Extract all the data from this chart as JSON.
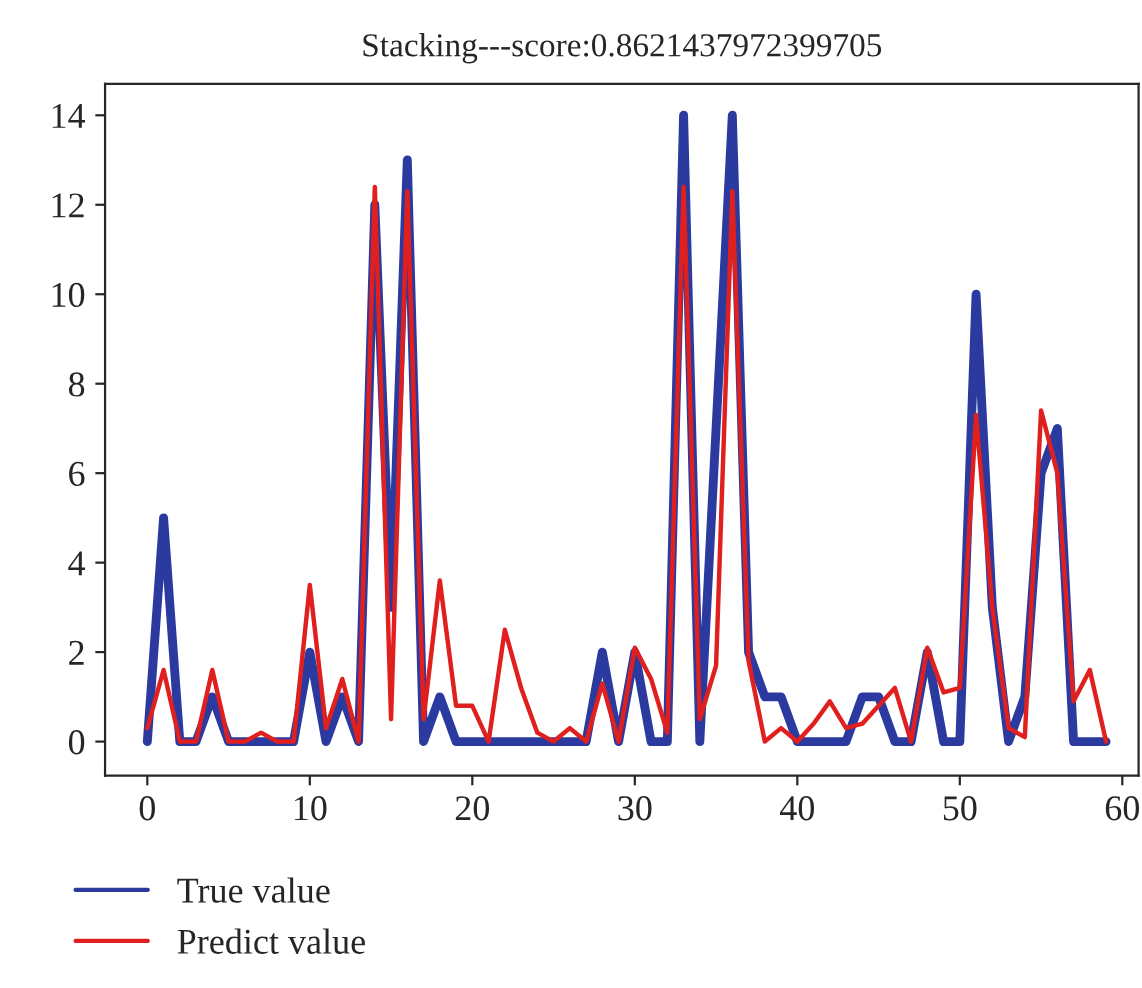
{
  "chart_data": {
    "type": "line",
    "title": "Stacking---score:0.8621437972399705",
    "x": [
      0,
      1,
      2,
      3,
      4,
      5,
      6,
      7,
      8,
      9,
      10,
      11,
      12,
      13,
      14,
      15,
      16,
      17,
      18,
      19,
      20,
      21,
      22,
      23,
      24,
      25,
      26,
      27,
      28,
      29,
      30,
      31,
      32,
      33,
      34,
      35,
      36,
      37,
      38,
      39,
      40,
      41,
      42,
      43,
      44,
      45,
      46,
      47,
      48,
      49,
      50,
      51,
      52,
      53,
      54,
      55,
      56,
      57,
      58,
      59
    ],
    "series": [
      {
        "name": "True value",
        "color": "#2b3a9e",
        "values": [
          0,
          5,
          0,
          0,
          1,
          0,
          0,
          0,
          0,
          0,
          2,
          0,
          1,
          0,
          12,
          3,
          13,
          0,
          1,
          0,
          0,
          0,
          0,
          0,
          0,
          0,
          0,
          0,
          2,
          0,
          2,
          0,
          0,
          14,
          0,
          7,
          14,
          2,
          1,
          1,
          0,
          0,
          0,
          0,
          1,
          1,
          0,
          0,
          2,
          0,
          0,
          10,
          3,
          0,
          1,
          6,
          7,
          0,
          0,
          0
        ]
      },
      {
        "name": "Predict value",
        "color": "#e0201e",
        "values": [
          0.3,
          1.6,
          0,
          0,
          1.6,
          0,
          0,
          0.2,
          0,
          0,
          3.5,
          0.3,
          1.4,
          0,
          12.4,
          0.5,
          12.3,
          0.5,
          3.6,
          0.8,
          0.8,
          0,
          2.5,
          1.2,
          0.2,
          0,
          0.3,
          0,
          1.3,
          0,
          2.1,
          1.4,
          0.2,
          12.4,
          0.5,
          1.7,
          12.3,
          1.8,
          0,
          0.3,
          0,
          0.4,
          0.9,
          0.3,
          0.4,
          0.8,
          1.2,
          0,
          2.1,
          1.1,
          1.2,
          7.3,
          3.0,
          0.3,
          0.1,
          7.4,
          6.0,
          0.9,
          1.6,
          0
        ]
      }
    ],
    "xlim": [
      -2.6,
      61
    ],
    "ylim": [
      -0.76,
      14.7
    ],
    "xticks": [
      0,
      10,
      20,
      30,
      40,
      50,
      60
    ],
    "yticks": [
      0,
      2,
      4,
      6,
      8,
      10,
      12,
      14
    ],
    "grid": false,
    "legend": "bottom left",
    "marker": "none",
    "line_style": "solid"
  }
}
